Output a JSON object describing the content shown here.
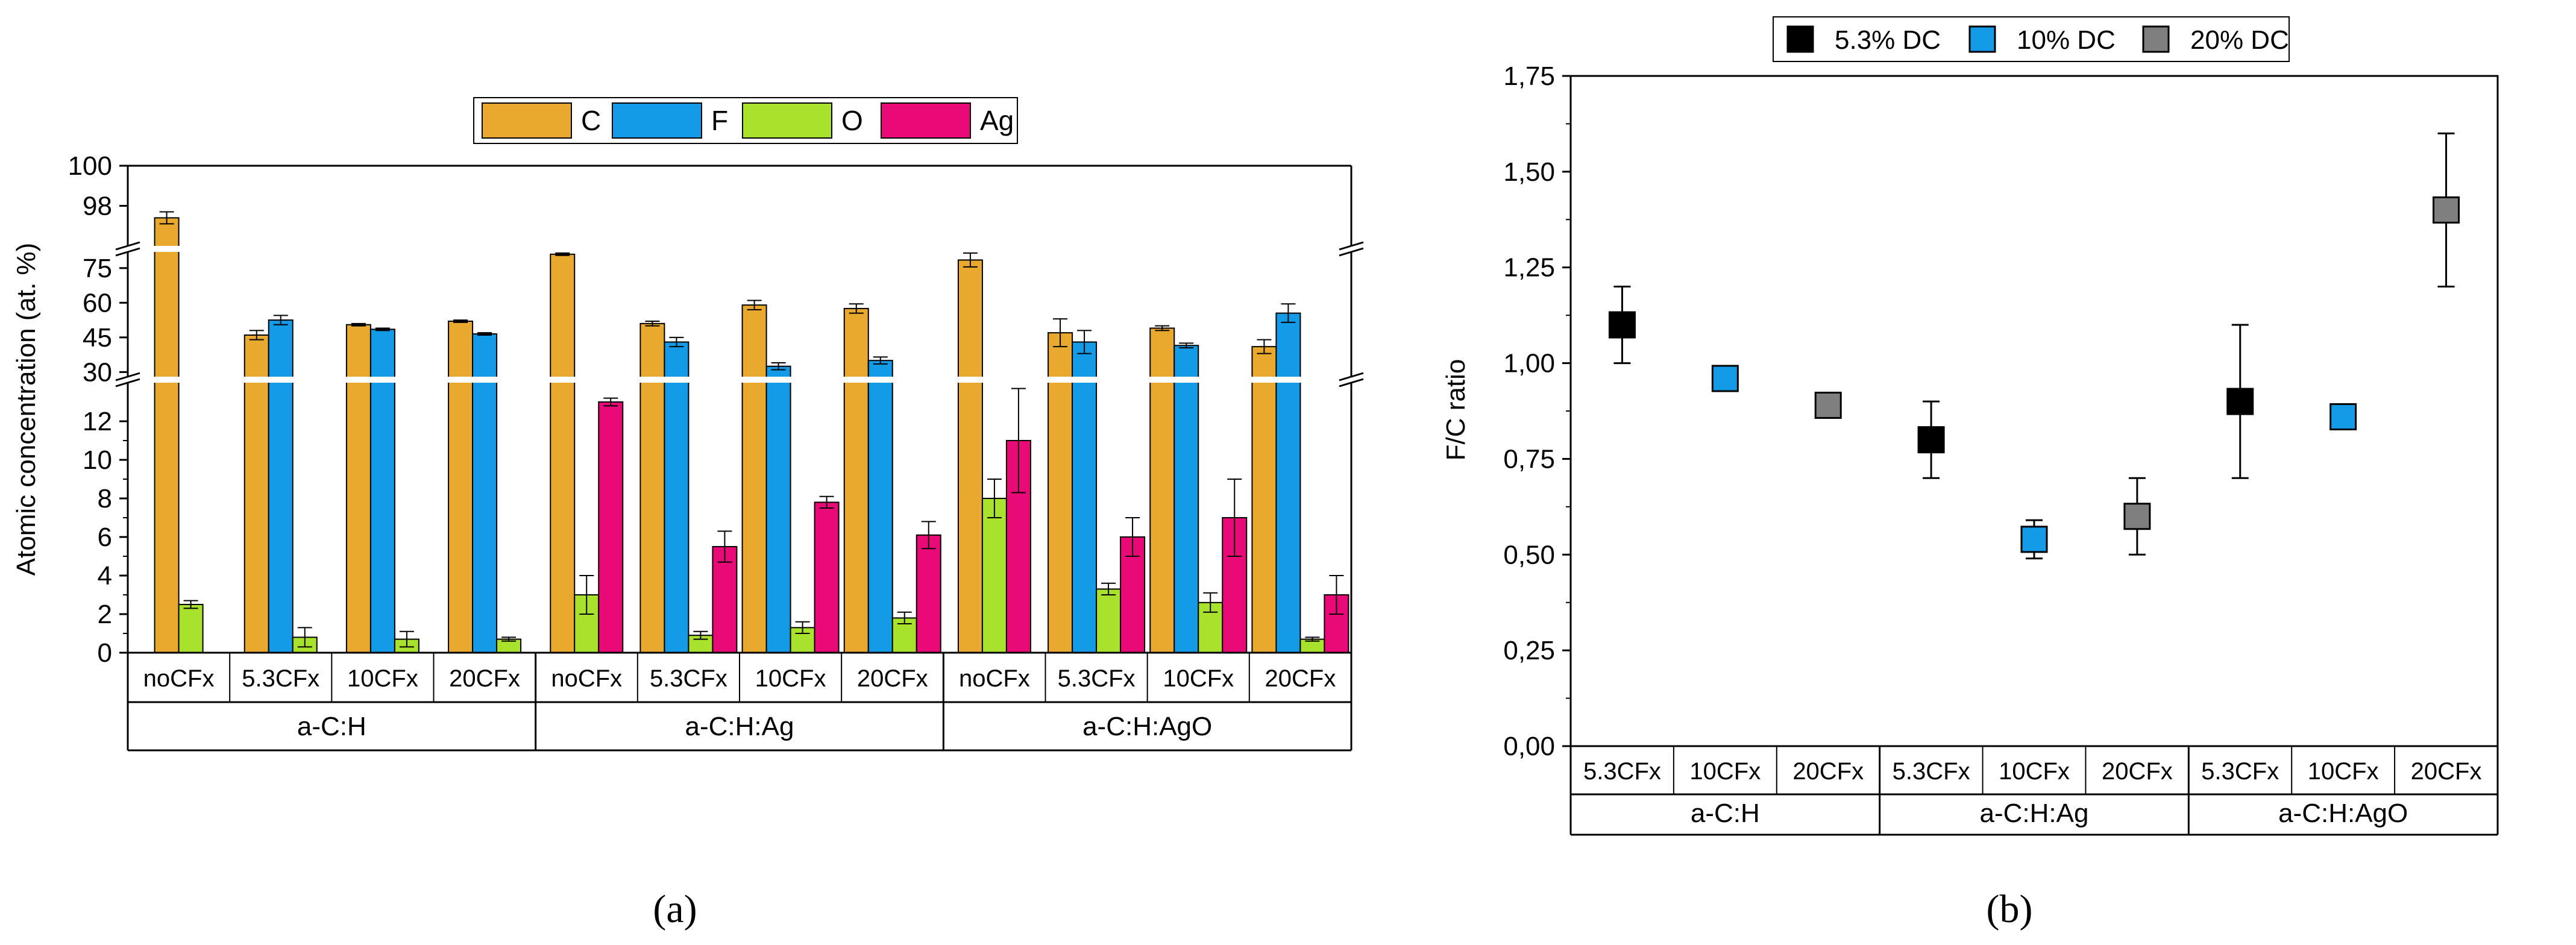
{
  "panel_labels": [
    "(a)",
    "(b)"
  ],
  "chart_data": [
    {
      "type": "bar",
      "panel": "(a)",
      "ylabel": "Atomic concentration (at. %)",
      "legend": {
        "placement": "top-center",
        "entries": [
          "C",
          "F",
          "O",
          "Ag"
        ]
      },
      "colors": {
        "C": "#E8A92E",
        "F": "#149BE8",
        "O": "#A8E22C",
        "Ag": "#E90A78"
      },
      "y_segments": [
        {
          "range": [
            0,
            14
          ],
          "ticks": [
            "0",
            "2",
            "4",
            "6",
            "8",
            "10",
            "12"
          ],
          "tick_values": [
            0,
            2,
            4,
            6,
            8,
            10,
            12
          ]
        },
        {
          "range": [
            28,
            82
          ],
          "ticks": [
            "30",
            "45",
            "60",
            "75"
          ],
          "tick_values": [
            30,
            45,
            60,
            75
          ]
        },
        {
          "range": [
            96,
            100
          ],
          "ticks": [
            "98",
            "100"
          ],
          "tick_values": [
            98,
            100
          ]
        }
      ],
      "categories": [
        "noCFx",
        "5.3CFx",
        "10CFx",
        "20CFx",
        "noCFx",
        "5.3CFx",
        "10CFx",
        "20CFx",
        "noCFx",
        "5.3CFx",
        "10CFx",
        "20CFx"
      ],
      "groups": [
        {
          "name": "a-C:H",
          "count": 4
        },
        {
          "name": "a-C:H:Ag",
          "count": 4
        },
        {
          "name": "a-C:H:AgO",
          "count": 4
        }
      ],
      "series": [
        {
          "name": "C",
          "values": [
            97.4,
            46,
            50.5,
            52,
            81,
            51,
            59,
            57.5,
            78.5,
            47,
            49,
            41
          ],
          "errors": [
            0.3,
            2,
            0.5,
            0.5,
            0.5,
            1,
            2,
            2,
            3,
            6,
            1,
            3
          ]
        },
        {
          "name": "F",
          "values": [
            0,
            52.5,
            48.5,
            46.5,
            0,
            43,
            32.5,
            35,
            0,
            43,
            41.5,
            55.5
          ],
          "errors": [
            0,
            2,
            0.5,
            0.5,
            0,
            2,
            1.5,
            1.5,
            0,
            5,
            1,
            4
          ]
        },
        {
          "name": "O",
          "values": [
            2.5,
            0.8,
            0.7,
            0.7,
            3,
            0.9,
            1.3,
            1.8,
            8,
            3.3,
            2.6,
            0.7
          ],
          "errors": [
            0.2,
            0.5,
            0.4,
            0.1,
            1,
            0.2,
            0.3,
            0.3,
            1,
            0.3,
            0.5,
            0.1
          ]
        },
        {
          "name": "Ag",
          "values": [
            0,
            0,
            0,
            0,
            13,
            5.5,
            7.8,
            6.1,
            11,
            6,
            7,
            3
          ],
          "errors": [
            0,
            0,
            0,
            0,
            0.2,
            0.8,
            0.3,
            0.7,
            2.7,
            1,
            2,
            1
          ]
        }
      ]
    },
    {
      "type": "scatter",
      "panel": "(b)",
      "ylabel": "F/C ratio",
      "ylim": [
        0,
        1.75
      ],
      "yticks": [
        "0,00",
        "0,25",
        "0,50",
        "0,75",
        "1,00",
        "1,25",
        "1,50",
        "1,75"
      ],
      "ytick_values": [
        0,
        0.25,
        0.5,
        0.75,
        1.0,
        1.25,
        1.5,
        1.75
      ],
      "legend": {
        "placement": "top-center",
        "entries": [
          "5.3% DC",
          "10% DC",
          "20% DC"
        ]
      },
      "colors": {
        "5.3% DC": "#000000",
        "10% DC": "#149BE8",
        "20% DC": "#7F7F7F"
      },
      "categories": [
        "5.3CFx",
        "10CFx",
        "20CFx",
        "5.3CFx",
        "10CFx",
        "20CFx",
        "5.3CFx",
        "10CFx",
        "20CFx"
      ],
      "groups": [
        {
          "name": "a-C:H",
          "count": 3
        },
        {
          "name": "a-C:H:Ag",
          "count": 3
        },
        {
          "name": "a-C:H:AgO",
          "count": 3
        }
      ],
      "points": [
        {
          "series": "5.3% DC",
          "index": 0,
          "y": 1.1,
          "err": 0.1
        },
        {
          "series": "10% DC",
          "index": 1,
          "y": 0.96,
          "err": 0.02
        },
        {
          "series": "20% DC",
          "index": 2,
          "y": 0.89,
          "err": 0.02
        },
        {
          "series": "5.3% DC",
          "index": 3,
          "y": 0.8,
          "err": 0.1
        },
        {
          "series": "10% DC",
          "index": 4,
          "y": 0.54,
          "err": 0.05
        },
        {
          "series": "20% DC",
          "index": 5,
          "y": 0.6,
          "err": 0.1
        },
        {
          "series": "5.3% DC",
          "index": 6,
          "y": 0.9,
          "err": 0.2
        },
        {
          "series": "10% DC",
          "index": 7,
          "y": 0.86,
          "err": 0.02
        },
        {
          "series": "20% DC",
          "index": 8,
          "y": 1.4,
          "err": 0.2
        }
      ]
    }
  ]
}
